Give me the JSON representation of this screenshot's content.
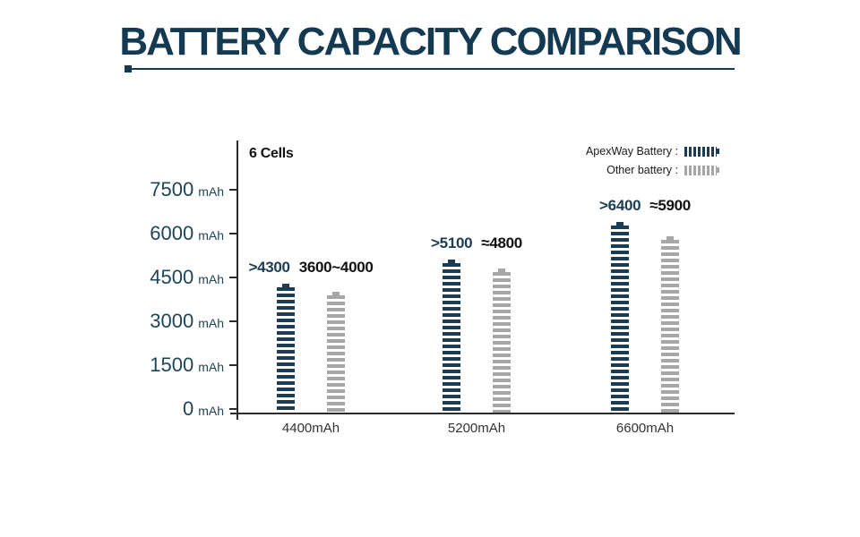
{
  "title": "BATTERY CAPACITY COMPARISON",
  "colors": {
    "accent": "#143a52",
    "axis": "#2b2b2b",
    "apexway": "#1b3c52",
    "other": "#a6a6a6"
  },
  "chart_data": {
    "type": "bar",
    "title": "Battery Capacity Comparison",
    "cells_label": "6 Cells",
    "xlabel": "",
    "ylabel": "mAh",
    "y_unit": "mAh",
    "y_ticks": [
      7500,
      6000,
      4500,
      3000,
      1500,
      0
    ],
    "ylim": [
      0,
      7500
    ],
    "grid": false,
    "legend_position": "top-right",
    "categories": [
      "4400mAh",
      "5200mAh",
      "6600mAh"
    ],
    "series": [
      {
        "name": "ApexWay Battery",
        "color": "#1b3c52",
        "values": [
          4300,
          5100,
          6400
        ],
        "value_labels": [
          ">4300",
          ">5100",
          ">6400"
        ]
      },
      {
        "name": "Other battery",
        "color": "#a6a6a6",
        "values": [
          4000,
          4800,
          5900
        ],
        "value_labels": [
          "3600~4000",
          "≈4800",
          "≈5900"
        ]
      }
    ],
    "legend": [
      {
        "label": "ApexWay Battery :",
        "series_index": 0
      },
      {
        "label": "Other battery :",
        "series_index": 1
      }
    ]
  }
}
